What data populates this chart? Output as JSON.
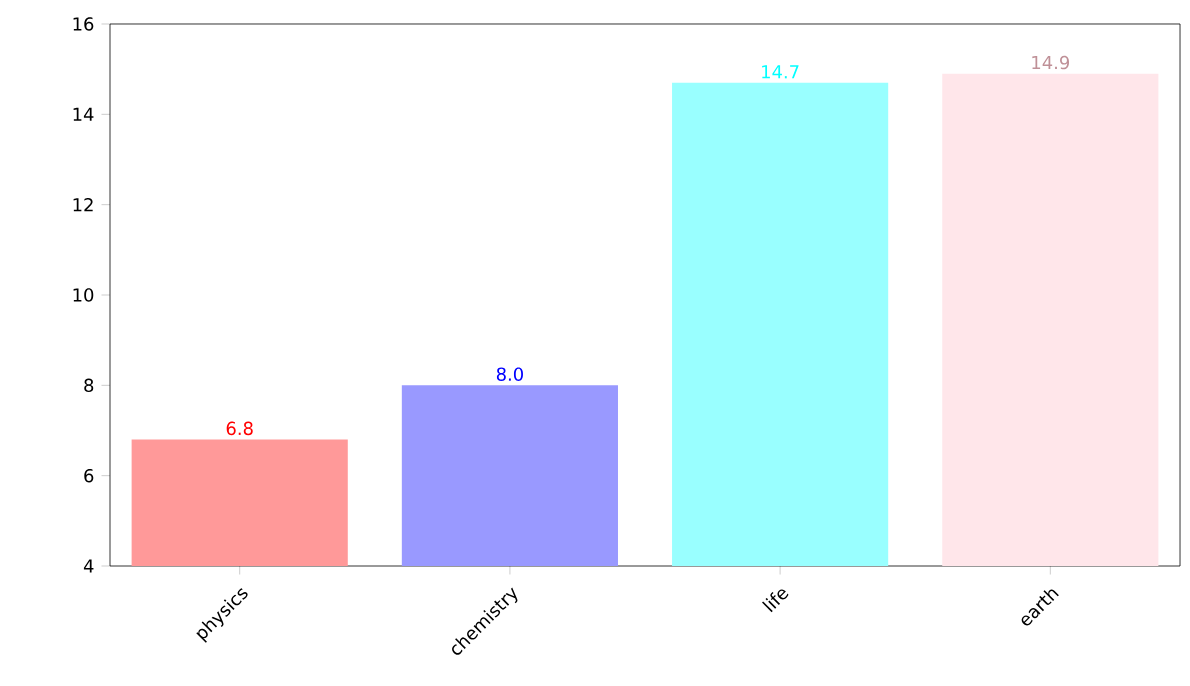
{
  "chart_data": {
    "type": "bar",
    "categories": [
      "physics",
      "chemistry",
      "life",
      "earth"
    ],
    "values": [
      6.8,
      8.0,
      14.7,
      14.9
    ],
    "colors": [
      "#ff9999",
      "#9999ff",
      "#99ffff",
      "#ffe6ea"
    ],
    "ylim": [
      4,
      16
    ],
    "yticks": [
      4,
      6,
      8,
      10,
      12,
      14,
      16
    ],
    "data_labels": true,
    "value_labels": [
      "6.8",
      "8.0",
      "14.7",
      "14.9"
    ]
  }
}
